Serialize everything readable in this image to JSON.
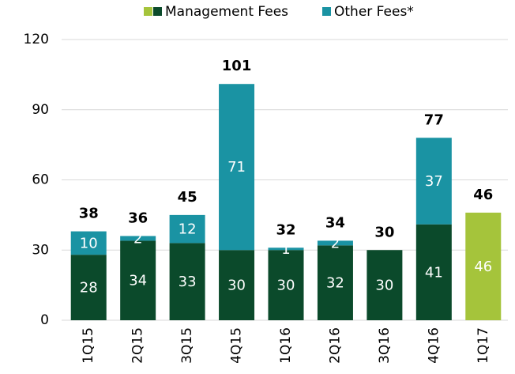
{
  "chart_data": {
    "type": "stacked_bar",
    "categories": [
      "1Q15",
      "2Q15",
      "3Q15",
      "4Q15",
      "1Q16",
      "2Q16",
      "3Q16",
      "4Q16",
      "1Q17"
    ],
    "series": [
      {
        "name": "Management Fees",
        "color": "#0b4a2b",
        "highlight_color": "#a5c43b",
        "highlight_category": "1Q17",
        "values": [
          28,
          34,
          33,
          30,
          30,
          32,
          30,
          41,
          46
        ]
      },
      {
        "name": "Other Fees*",
        "color": "#1a93a3",
        "values": [
          10,
          2,
          12,
          71,
          1,
          2,
          null,
          37,
          null
        ]
      }
    ],
    "totals": [
      38,
      36,
      45,
      101,
      32,
      34,
      30,
      77,
      46
    ],
    "ylim": [
      0,
      120
    ],
    "yticks": [
      0,
      30,
      60,
      90,
      120
    ],
    "grid": true
  }
}
